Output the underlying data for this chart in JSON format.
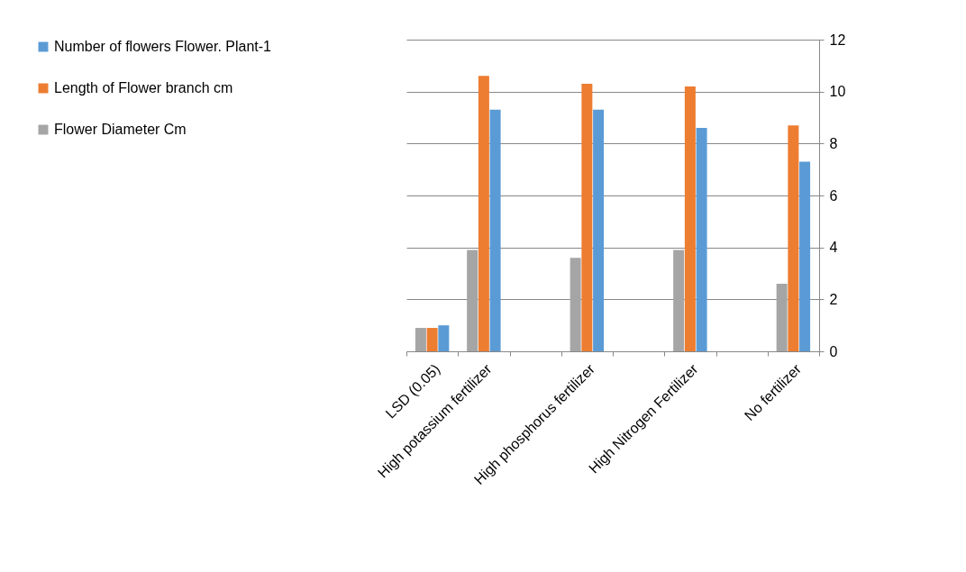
{
  "chart_data": {
    "type": "bar",
    "categories": [
      "LSD (0.05)",
      "High potassium fertilizer",
      null,
      "High phosphorus fertilizer",
      null,
      "High Nitrogen Fertilizer",
      null,
      "No fertilizer"
    ],
    "series": [
      {
        "name": "Flower Diameter Cm",
        "color": "#a5a5a5",
        "values": [
          0.9,
          3.9,
          null,
          3.6,
          null,
          3.9,
          null,
          2.6
        ]
      },
      {
        "name": "Length of Flower branch   cm",
        "color": "#ed7d31",
        "values": [
          0.9,
          10.6,
          null,
          10.3,
          null,
          10.2,
          null,
          8.7
        ]
      },
      {
        "name": "Number of flowers Flower. Plant-1",
        "color": "#5b9bd5",
        "values": [
          1.0,
          9.3,
          null,
          9.3,
          null,
          8.6,
          null,
          7.3
        ]
      }
    ],
    "ylim": [
      0,
      12
    ],
    "yticks": [
      0,
      2,
      4,
      6,
      8,
      10,
      12
    ],
    "grid": "y",
    "legend": "left"
  }
}
